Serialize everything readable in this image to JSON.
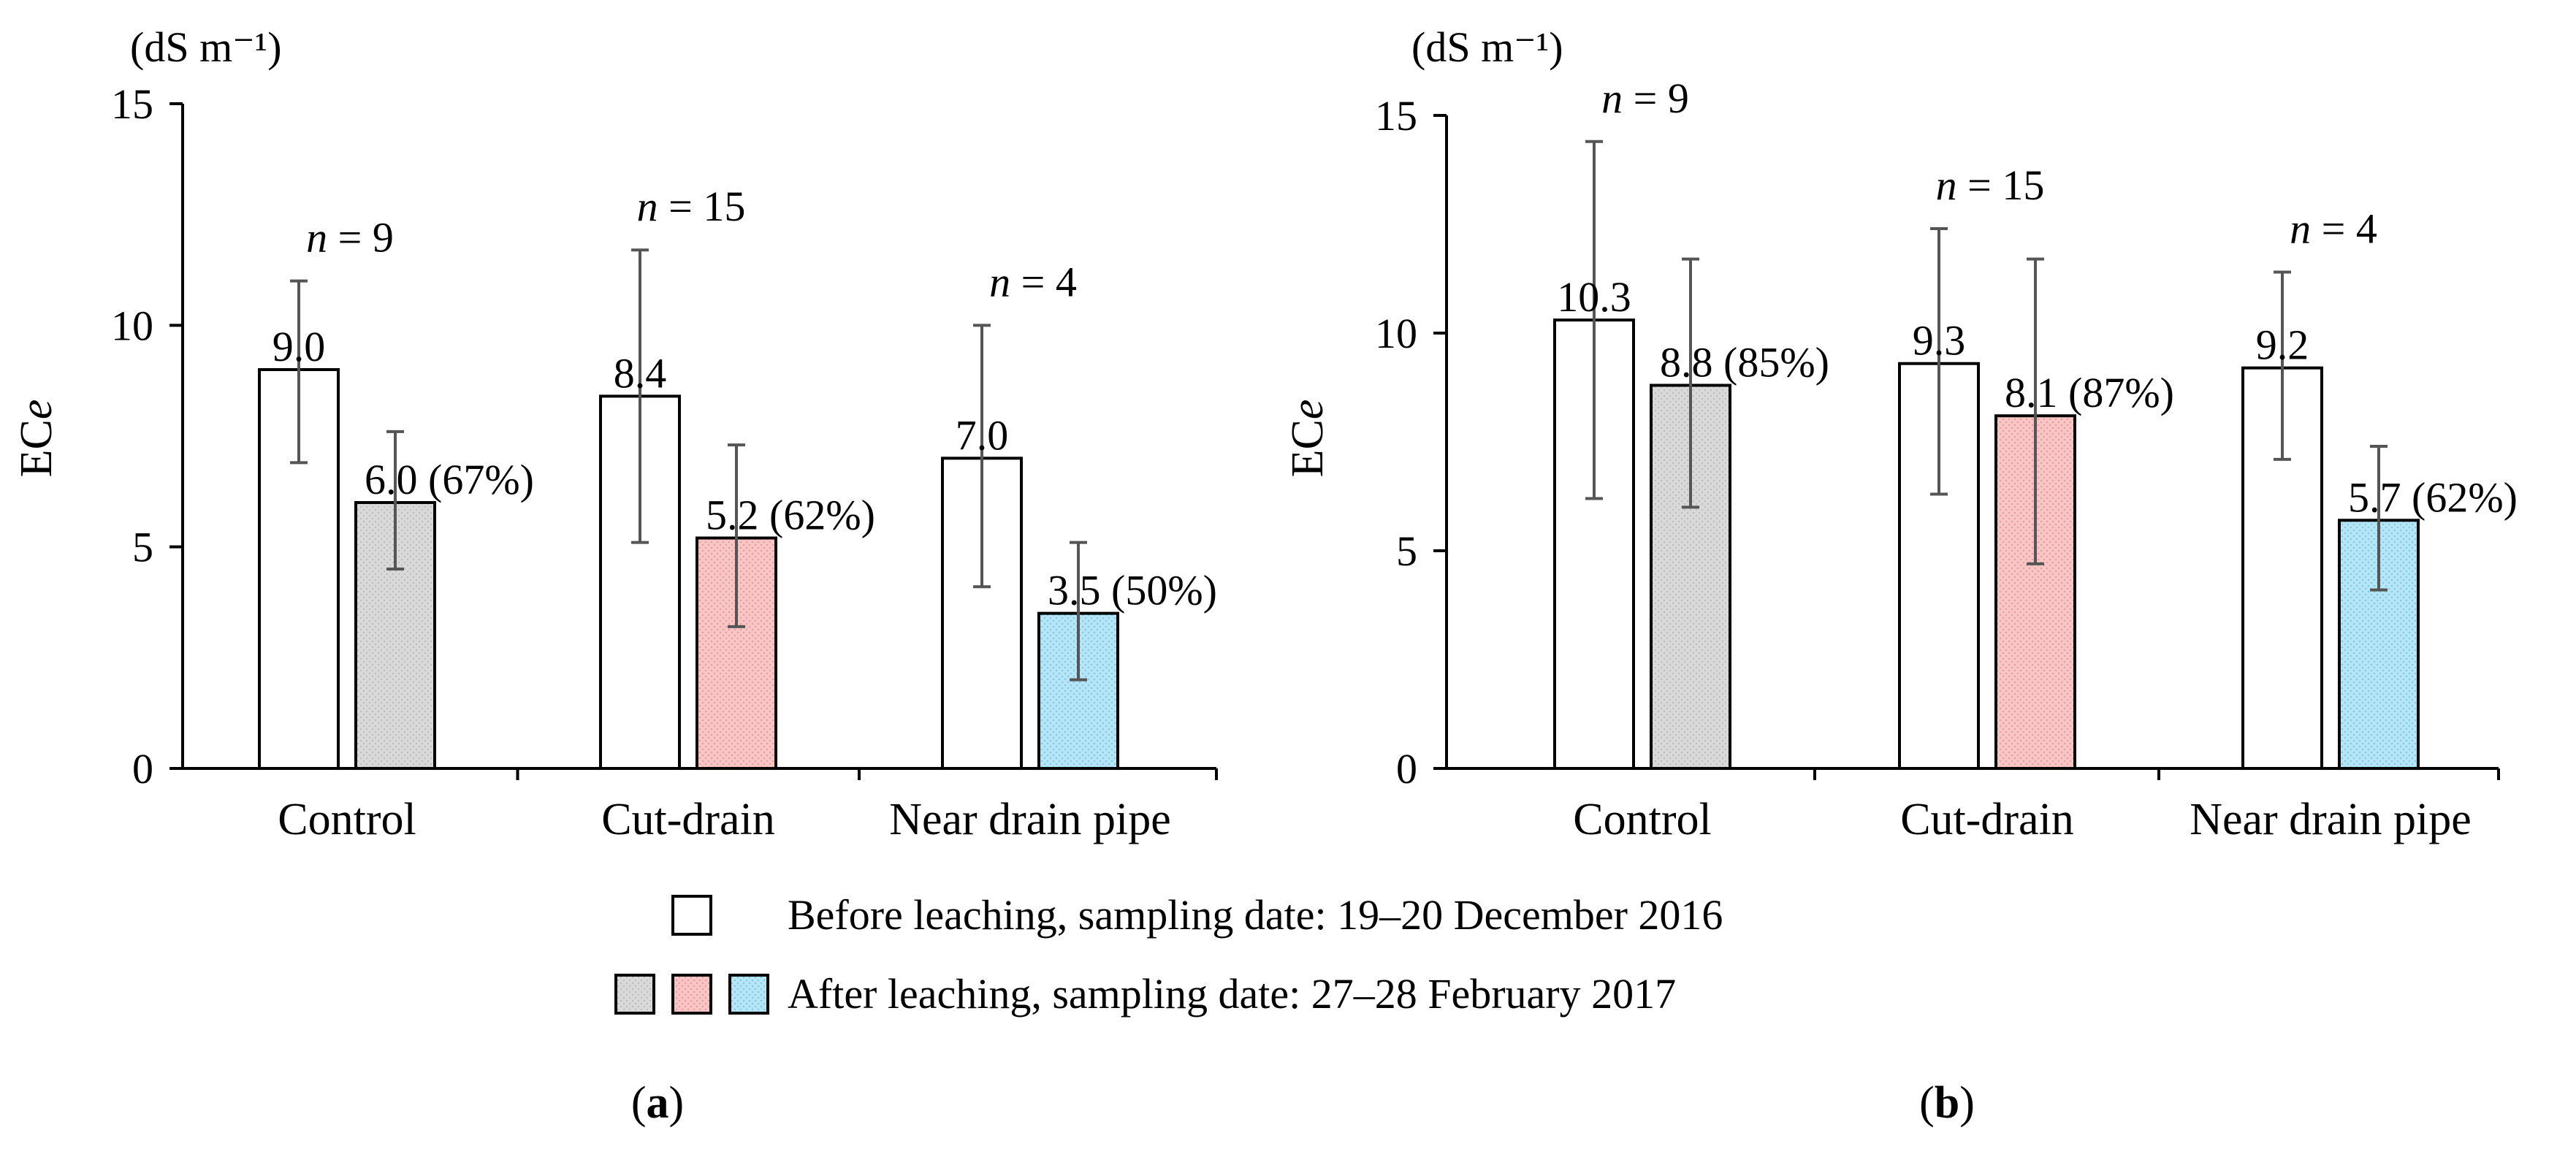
{
  "legend": {
    "before": "Before leaching, sampling date: 19–20 December 2016",
    "after": "After leaching, sampling date: 27–28 February 2017"
  },
  "colors": {
    "before_fill": "#ffffff",
    "control_after": "#d9d9d9",
    "cutdrain_after": "#f9c6c6",
    "neardrain_after": "#b7e6f7",
    "error_bar": "#555555"
  },
  "chart_data": [
    {
      "type": "bar",
      "panel": "a",
      "panel_label": "a",
      "unit": "(dS m⁻¹)",
      "ylabel_main": "EC",
      "ylabel_italic": "e",
      "xlabel": "",
      "ylim": [
        0,
        15
      ],
      "yticks": [
        0,
        5,
        10,
        15
      ],
      "categories": [
        "Control",
        "Cut-drain",
        "Near drain pipe"
      ],
      "n_labels": [
        "= 9",
        "= 15",
        "= 4"
      ],
      "series": [
        {
          "name": "Before leaching, sampling date: 19–20 December 2016",
          "values": [
            9.0,
            8.4,
            7.0
          ],
          "err_low": [
            6.9,
            5.1,
            4.1
          ],
          "err_high": [
            11.0,
            11.7,
            10.0
          ],
          "labels": [
            "9.0",
            "8.4",
            "7.0"
          ]
        },
        {
          "name": "After leaching, sampling date: 27–28 February 2017",
          "values": [
            6.0,
            5.2,
            3.5
          ],
          "err_low": [
            4.5,
            3.2,
            2.0
          ],
          "err_high": [
            7.6,
            7.3,
            5.1
          ],
          "labels": [
            "6.0 (67%)",
            "5.2 (62%)",
            "3.5 (50%)"
          ]
        }
      ]
    },
    {
      "type": "bar",
      "panel": "b",
      "panel_label": "b",
      "unit": "(dS m⁻¹)",
      "ylabel_main": "EC",
      "ylabel_italic": "e",
      "xlabel": "",
      "ylim": [
        0,
        15
      ],
      "yticks": [
        0,
        5,
        10,
        15
      ],
      "categories": [
        "Control",
        "Cut-drain",
        "Near drain pipe"
      ],
      "n_labels": [
        "= 9",
        "= 15",
        "= 4"
      ],
      "series": [
        {
          "name": "Before leaching, sampling date: 19–20 December 2016",
          "values": [
            10.3,
            9.3,
            9.2
          ],
          "err_low": [
            6.2,
            6.3,
            7.1
          ],
          "err_high": [
            14.4,
            12.4,
            11.4
          ],
          "labels": [
            "10.3",
            "9.3",
            "9.2"
          ]
        },
        {
          "name": "After leaching, sampling date: 27–28 February 2017",
          "values": [
            8.8,
            8.1,
            5.7
          ],
          "err_low": [
            6.0,
            4.7,
            4.1
          ],
          "err_high": [
            11.7,
            11.7,
            7.4
          ],
          "labels": [
            "8.8 (85%)",
            "8.1 (87%)",
            "5.7 (62%)"
          ]
        }
      ]
    }
  ]
}
